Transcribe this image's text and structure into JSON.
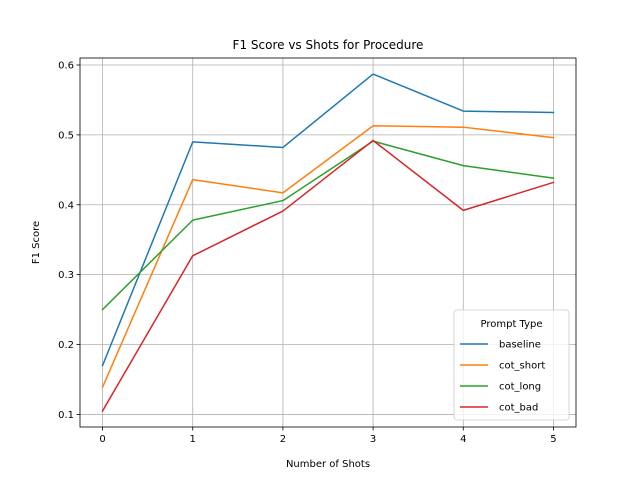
{
  "chart_data": {
    "type": "line",
    "title": "F1 Score vs Shots for Procedure",
    "xlabel": "Number of Shots",
    "ylabel": "F1 Score",
    "x": [
      0,
      1,
      2,
      3,
      4,
      5
    ],
    "xlim": [
      -0.25,
      5.25
    ],
    "ylim": [
      0.082,
      0.61
    ],
    "yticks": [
      0.1,
      0.2,
      0.3,
      0.4,
      0.5,
      0.6
    ],
    "ytick_labels": [
      "0.1",
      "0.2",
      "0.3",
      "0.4",
      "0.5",
      "0.6"
    ],
    "xtick_labels": [
      "0",
      "1",
      "2",
      "3",
      "4",
      "5"
    ],
    "grid": true,
    "legend": {
      "title": "Prompt Type",
      "placement": "lower-right"
    },
    "series": [
      {
        "name": "baseline",
        "color": "#1f77b4",
        "values": [
          0.17,
          0.49,
          0.482,
          0.587,
          0.534,
          0.532
        ]
      },
      {
        "name": "cot_short",
        "color": "#ff7f0e",
        "values": [
          0.139,
          0.436,
          0.417,
          0.513,
          0.511,
          0.496
        ]
      },
      {
        "name": "cot_long",
        "color": "#2ca02c",
        "values": [
          0.25,
          0.378,
          0.406,
          0.491,
          0.456,
          0.438
        ]
      },
      {
        "name": "cot_bad",
        "color": "#d62728",
        "values": [
          0.105,
          0.327,
          0.391,
          0.492,
          0.392,
          0.432
        ]
      }
    ]
  }
}
